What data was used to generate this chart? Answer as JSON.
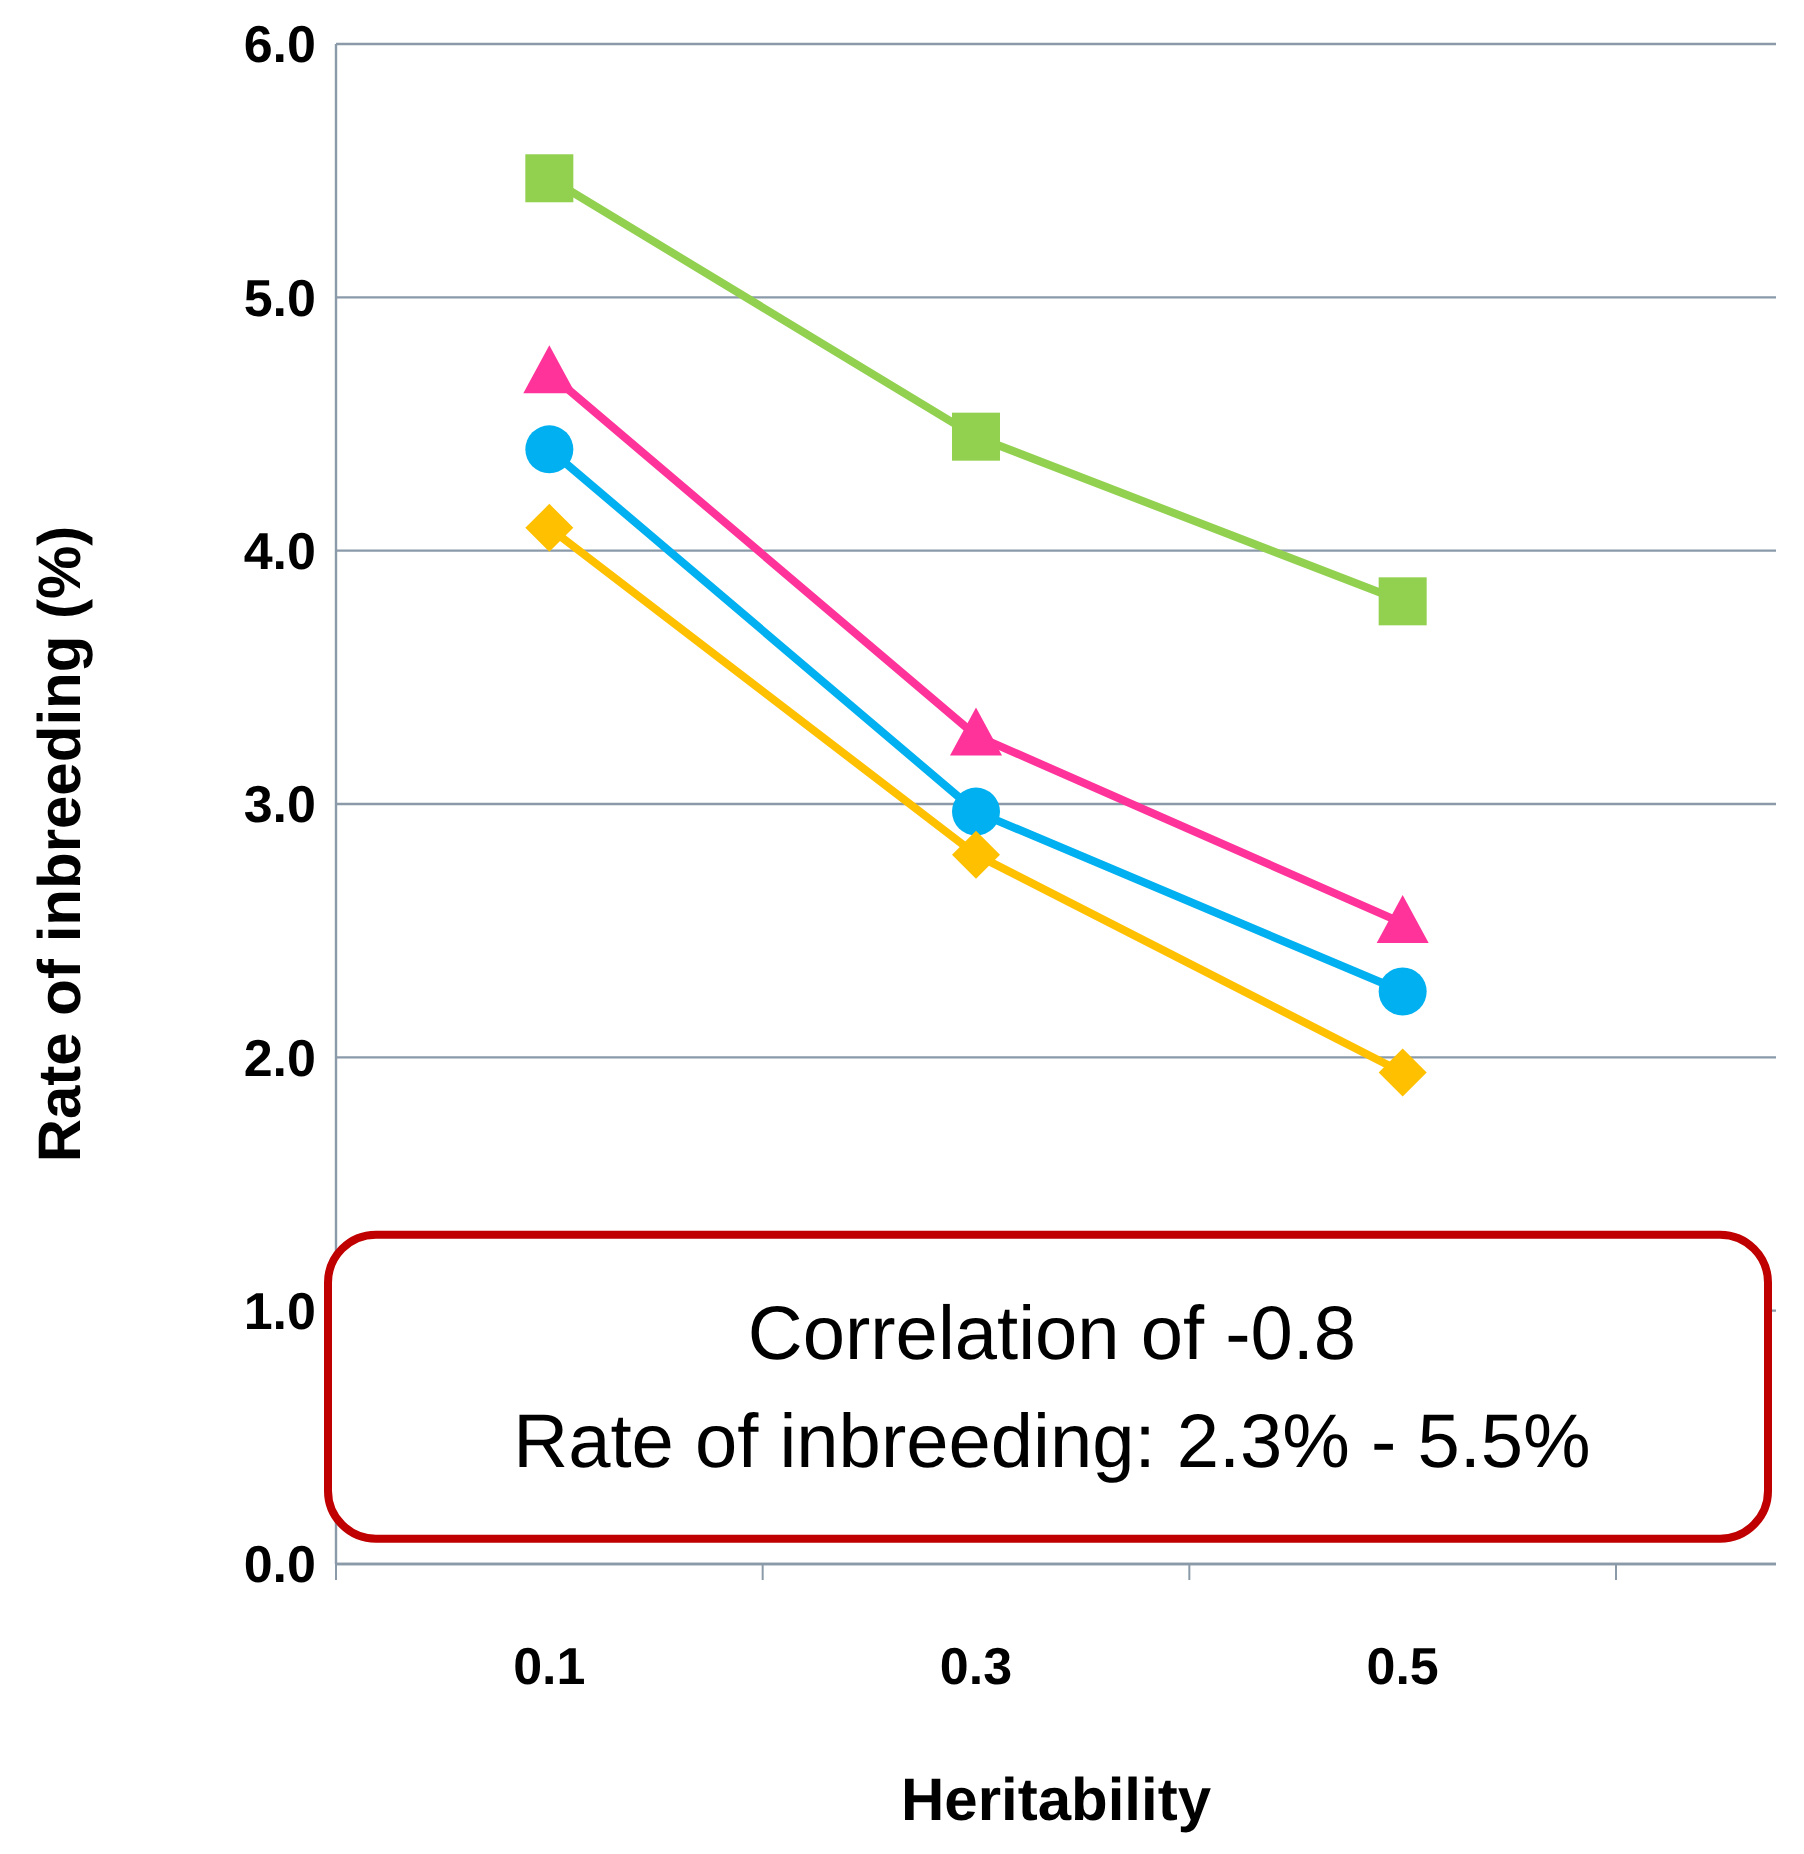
{
  "chart_data": {
    "type": "line",
    "xlabel": "Heritability",
    "ylabel": "Rate of inbreeding (%)",
    "categories": [
      "0.1",
      "0.3",
      "0.5"
    ],
    "ylim": [
      0,
      6
    ],
    "yticks": [
      {
        "value": 0,
        "label": "0.0"
      },
      {
        "value": 1,
        "label": "1.0"
      },
      {
        "value": 2,
        "label": "2.0"
      },
      {
        "value": 3,
        "label": "3.0"
      },
      {
        "value": 4,
        "label": "4.0"
      },
      {
        "value": 5,
        "label": "5.0"
      },
      {
        "value": 6,
        "label": "6.0"
      }
    ],
    "grid": "y",
    "line_style": "solid",
    "series": [
      {
        "color": "#92d050",
        "marker": "square",
        "values": [
          5.47,
          4.45,
          3.8
        ]
      },
      {
        "color": "#ff3399",
        "marker": "triangle",
        "values": [
          4.7,
          3.27,
          2.53
        ]
      },
      {
        "color": "#00b0f0",
        "marker": "circle",
        "values": [
          4.4,
          2.97,
          2.26
        ]
      },
      {
        "color": "#ffc000",
        "marker": "diamond",
        "values": [
          4.09,
          2.8,
          1.94
        ]
      }
    ],
    "annotations": [
      "Correlation of -0.8",
      "Rate of inbreeding: 2.3% - 5.5%"
    ]
  }
}
